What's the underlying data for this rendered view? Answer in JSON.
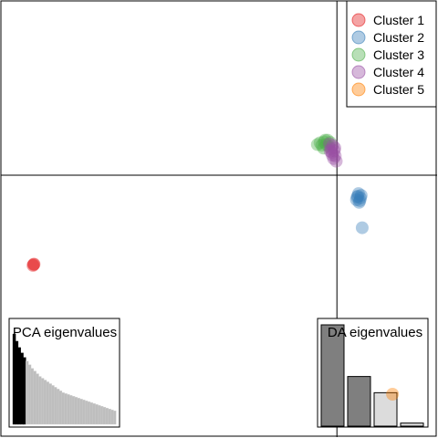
{
  "chart_data": {
    "type": "scatter",
    "title": "",
    "xlabel": "",
    "ylabel": "",
    "xlim": [
      -10,
      3
    ],
    "ylim": [
      -6,
      4
    ],
    "axes_crossing": {
      "x": 0,
      "y": 0
    },
    "grid": false,
    "legend": {
      "placement": "top-right",
      "entries": [
        "Cluster 1",
        "Cluster 2",
        "Cluster 3",
        "Cluster 4",
        "Cluster 5"
      ]
    },
    "series": [
      {
        "name": "Cluster 1",
        "color": "#E41A1C",
        "points": [
          [
            -9.0,
            -2.04
          ],
          [
            -9.02,
            -2.06
          ],
          [
            -8.99,
            -2.03
          ]
        ]
      },
      {
        "name": "Cluster 2",
        "color": "#377EB8",
        "points": [
          [
            0.6,
            -0.5
          ],
          [
            0.64,
            -0.42
          ],
          [
            0.7,
            -0.52
          ],
          [
            0.58,
            -0.56
          ],
          [
            0.66,
            -0.62
          ],
          [
            0.72,
            -0.46
          ],
          [
            0.62,
            -0.48
          ],
          [
            0.68,
            -0.58
          ],
          [
            0.75,
            -1.2
          ]
        ]
      },
      {
        "name": "Cluster 3",
        "color": "#4DAF4A",
        "points": [
          [
            -0.58,
            0.7
          ],
          [
            -0.5,
            0.74
          ],
          [
            -0.45,
            0.68
          ],
          [
            -0.38,
            0.76
          ],
          [
            -0.32,
            0.7
          ],
          [
            -0.28,
            0.8
          ],
          [
            -0.24,
            0.66
          ],
          [
            -0.4,
            0.62
          ],
          [
            -0.2,
            0.75
          ],
          [
            -0.35,
            0.8
          ]
        ]
      },
      {
        "name": "Cluster 4",
        "color": "#984EA3",
        "points": [
          [
            -0.22,
            0.72
          ],
          [
            -0.18,
            0.6
          ],
          [
            -0.12,
            0.68
          ],
          [
            -0.15,
            0.52
          ],
          [
            -0.08,
            0.56
          ],
          [
            -0.05,
            0.44
          ],
          [
            -0.1,
            0.38
          ],
          [
            -0.02,
            0.32
          ],
          [
            -0.14,
            0.46
          ],
          [
            -0.06,
            0.62
          ],
          [
            -0.2,
            0.55
          ]
        ]
      },
      {
        "name": "Cluster 5",
        "color": "#FF7F00",
        "points": [
          [
            1.65,
            -5.0
          ]
        ]
      }
    ],
    "inset_pca": {
      "title": "PCA eigenvalues",
      "n_axes": 40,
      "retained": 5,
      "values": [
        100,
        92,
        85,
        79,
        74,
        70,
        66,
        62,
        59,
        56,
        53,
        51,
        49,
        47,
        45,
        43,
        41,
        39,
        37,
        35,
        34,
        33,
        32,
        31,
        30,
        29,
        28,
        27,
        26,
        25,
        24,
        23,
        22,
        21,
        20,
        19,
        18,
        17,
        16,
        15
      ]
    },
    "inset_da": {
      "title": "DA eigenvalues",
      "values": [
        100,
        49,
        33,
        3
      ],
      "retained": 2
    }
  }
}
